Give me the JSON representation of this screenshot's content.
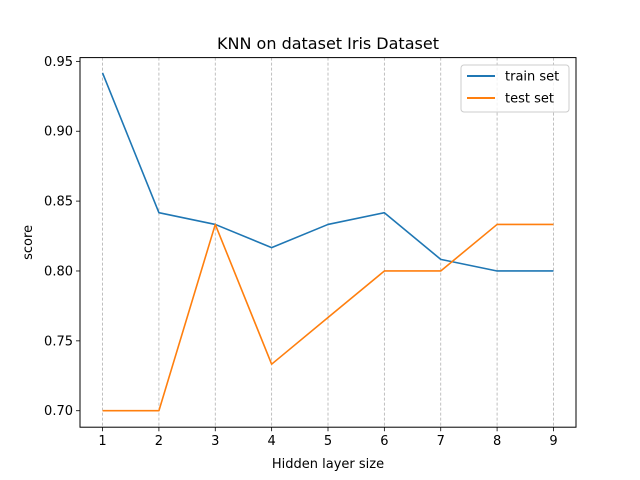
{
  "chart_data": {
    "type": "line",
    "title": "KNN on dataset Iris Dataset",
    "xlabel": "Hidden layer size",
    "ylabel": "score",
    "x": [
      1,
      2,
      3,
      4,
      5,
      6,
      7,
      8,
      9
    ],
    "xticks": [
      "1",
      "2",
      "3",
      "4",
      "5",
      "6",
      "7",
      "8",
      "9"
    ],
    "yticks": [
      "0.70",
      "0.75",
      "0.80",
      "0.85",
      "0.90",
      "0.95"
    ],
    "ylim": [
      0.6882,
      0.9527
    ],
    "xlim": [
      0.6,
      9.4
    ],
    "grid": "vertical dashed",
    "legend_position": "upper right",
    "series": [
      {
        "name": "train set",
        "color": "#1f77b4",
        "values": [
          0.9417,
          0.8417,
          0.8333,
          0.8167,
          0.8333,
          0.8417,
          0.8083,
          0.8,
          0.8
        ]
      },
      {
        "name": "test set",
        "color": "#ff7f0e",
        "values": [
          0.7,
          0.7,
          0.8333,
          0.7333,
          0.7667,
          0.8,
          0.8,
          0.8333,
          0.8333
        ]
      }
    ]
  }
}
